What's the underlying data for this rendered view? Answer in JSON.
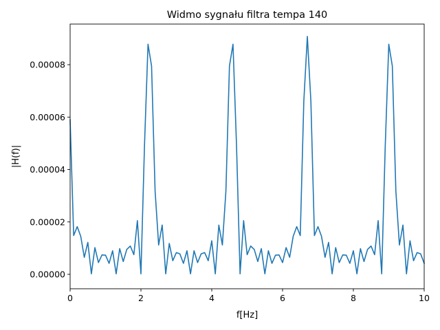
{
  "chart_data": {
    "type": "line",
    "title": "Widmo sygnału filtra tempa 140",
    "xlabel": "f[Hz]",
    "ylabel": "|H(f)|",
    "xlim": [
      0,
      10
    ],
    "ylim": [
      -5.5e-06,
      9.55e-05
    ],
    "xticks": [
      0,
      2,
      4,
      6,
      8,
      10
    ],
    "xtick_labels": [
      "0",
      "2",
      "4",
      "6",
      "8",
      "10"
    ],
    "yticks": [
      0,
      2e-05,
      4e-05,
      6e-05,
      8e-05
    ],
    "ytick_labels": [
      "0.00000",
      "0.00002",
      "0.00004",
      "0.00006",
      "0.00008"
    ],
    "grid": false,
    "series": [
      {
        "color": "#1f77b4",
        "x": [
          0.0,
          0.1,
          0.2,
          0.3,
          0.4,
          0.5,
          0.6,
          0.7,
          0.8,
          0.9,
          1.0,
          1.1,
          1.2,
          1.3,
          1.4,
          1.5,
          1.6,
          1.7,
          1.8,
          1.9,
          2.0,
          2.1,
          2.2,
          2.3,
          2.4,
          2.5,
          2.6,
          2.7,
          2.8,
          2.9,
          3.0,
          3.1,
          3.2,
          3.3,
          3.4,
          3.5,
          3.6,
          3.7,
          3.8,
          3.9,
          4.0,
          4.1,
          4.2,
          4.3,
          4.4,
          4.5,
          4.6,
          4.7,
          4.8,
          4.9,
          5.0,
          5.1,
          5.2,
          5.3,
          5.4,
          5.5,
          5.6,
          5.7,
          5.8,
          5.9,
          6.0,
          6.1,
          6.2,
          6.3,
          6.4,
          6.5,
          6.6,
          6.7,
          6.8,
          6.9,
          7.0,
          7.1,
          7.2,
          7.3,
          7.4,
          7.5,
          7.6,
          7.7,
          7.8,
          7.9,
          8.0,
          8.1,
          8.2,
          8.3,
          8.4,
          8.5,
          8.6,
          8.7,
          8.8,
          8.9,
          9.0,
          9.1,
          9.2,
          9.3,
          9.4,
          9.5,
          9.6,
          9.7,
          9.8,
          9.9,
          10.0
        ],
        "y": [
          5.9e-05,
          1.48e-05,
          1.82e-05,
          1.45e-05,
          6.5e-06,
          1.22e-05,
          2e-07,
          1.02e-05,
          4.5e-06,
          7.4e-06,
          7.3e-06,
          4.2e-06,
          9e-06,
          2e-07,
          9.8e-06,
          4.9e-06,
          9.5e-06,
          1.08e-05,
          7.5e-06,
          2.05e-05,
          2e-07,
          4.9e-05,
          8.78e-05,
          7.95e-05,
          3.18e-05,
          1.12e-05,
          1.88e-05,
          2e-07,
          1.18e-05,
          5.2e-06,
          8.3e-06,
          7.8e-06,
          4.2e-06,
          9e-06,
          2e-07,
          9e-06,
          4.5e-06,
          7.8e-06,
          8.3e-06,
          5.2e-06,
          1.28e-05,
          2e-07,
          1.88e-05,
          1.12e-05,
          3.18e-05,
          7.95e-05,
          8.78e-05,
          4.9e-05,
          2e-07,
          2.05e-05,
          7.5e-06,
          1.08e-05,
          9.5e-06,
          4.9e-06,
          9.8e-06,
          2e-07,
          9e-06,
          4.2e-06,
          7.3e-06,
          7.4e-06,
          4.5e-06,
          1.02e-05,
          6.5e-06,
          1.45e-05,
          1.82e-05,
          1.48e-05,
          6.6e-05,
          9.08e-05,
          6.6e-05,
          1.48e-05,
          1.82e-05,
          1.45e-05,
          6.5e-06,
          1.22e-05,
          2e-07,
          1.02e-05,
          4.5e-06,
          7.4e-06,
          7.3e-06,
          4.2e-06,
          9e-06,
          2e-07,
          9.8e-06,
          4.9e-06,
          9.5e-06,
          1.08e-05,
          7.5e-06,
          2.05e-05,
          2e-07,
          4.9e-05,
          8.78e-05,
          7.95e-05,
          3.18e-05,
          1.12e-05,
          1.88e-05,
          2e-07,
          1.28e-05,
          5.2e-06,
          8.3e-06,
          7.8e-06,
          4.2e-06
        ]
      }
    ]
  }
}
